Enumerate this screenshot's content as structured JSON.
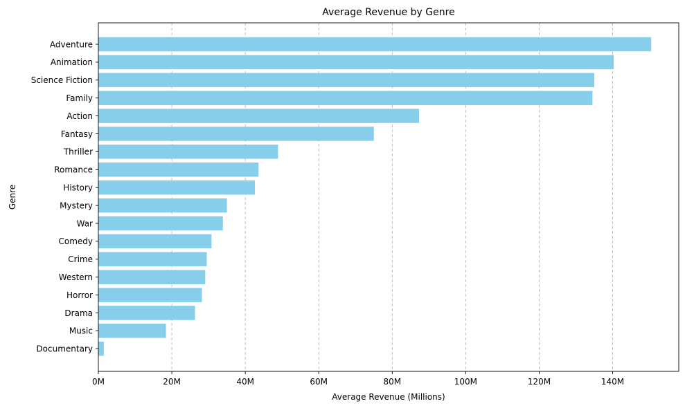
{
  "chart_data": {
    "type": "bar",
    "orientation": "horizontal",
    "title": "Average Revenue by Genre",
    "xlabel": "Average Revenue (Millions)",
    "ylabel": "Genre",
    "xlim": [
      0,
      158
    ],
    "xticks": [
      0,
      20,
      40,
      60,
      80,
      100,
      120,
      140
    ],
    "xtick_labels": [
      "0M",
      "20M",
      "40M",
      "60M",
      "80M",
      "100M",
      "120M",
      "140M"
    ],
    "grid": "x-axis dashed",
    "bar_color": "#87CEEB",
    "categories": [
      "Adventure",
      "Animation",
      "Science Fiction",
      "Family",
      "Action",
      "Fantasy",
      "Thriller",
      "Romance",
      "History",
      "Mystery",
      "War",
      "Comedy",
      "Crime",
      "Western",
      "Horror",
      "Drama",
      "Music",
      "Documentary"
    ],
    "values": [
      150.5,
      140.3,
      135.0,
      134.5,
      87.3,
      75.0,
      48.9,
      43.6,
      42.6,
      35.0,
      33.9,
      30.8,
      29.5,
      29.1,
      28.2,
      26.3,
      18.4,
      1.5
    ]
  }
}
